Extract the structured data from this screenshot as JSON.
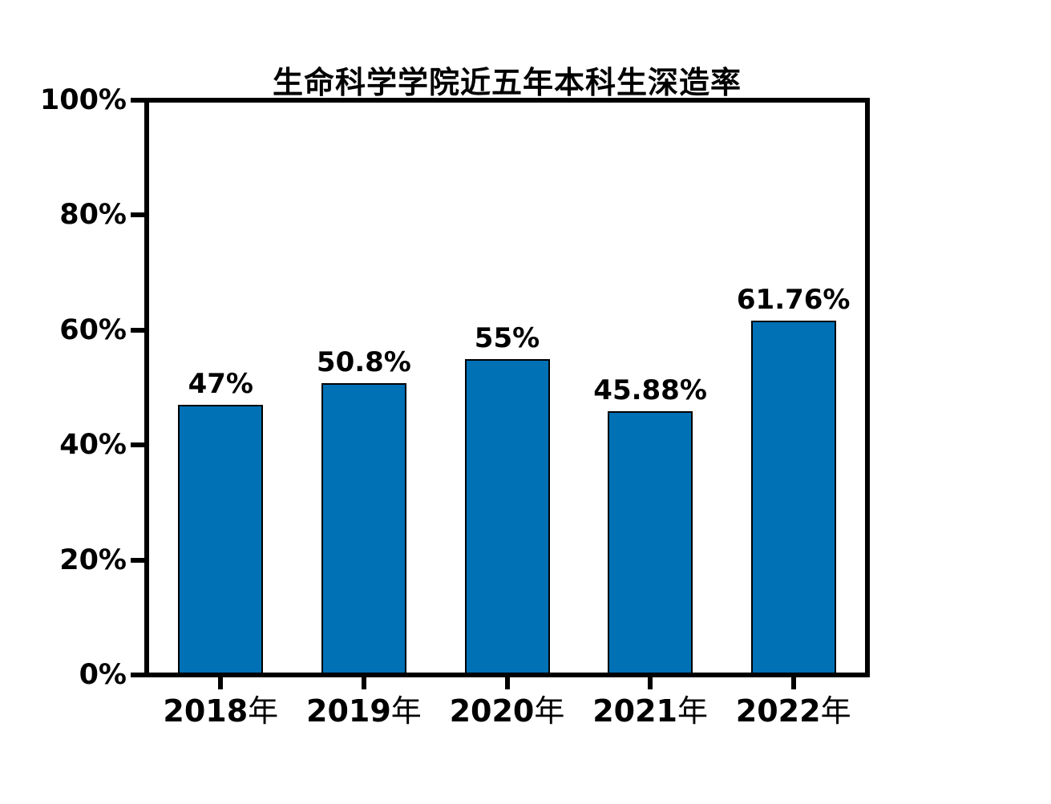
{
  "chart_data": {
    "type": "bar",
    "title": "生命科学学院近五年本科生深造率",
    "categories": [
      "2018年",
      "2019年",
      "2020年",
      "2021年",
      "2022年"
    ],
    "values": [
      47,
      50.8,
      55,
      45.88,
      61.76
    ],
    "value_labels": [
      "47%",
      "50.8%",
      "55%",
      "45.88%",
      "61.76%"
    ],
    "xlabel": "",
    "ylabel": "",
    "ylim": [
      0,
      100
    ],
    "y_ticks": [
      {
        "value": 0,
        "label": "0%"
      },
      {
        "value": 20,
        "label": "20%"
      },
      {
        "value": 40,
        "label": "40%"
      },
      {
        "value": 60,
        "label": "60%"
      },
      {
        "value": 80,
        "label": "80%"
      },
      {
        "value": 100,
        "label": "100%"
      }
    ],
    "grid": false,
    "legend_position": "none",
    "bar_color": "#0071B5",
    "bar_border_color": "#000000",
    "axis_color": "#000000",
    "text_color": "#000000",
    "background_color": "#ffffff"
  }
}
